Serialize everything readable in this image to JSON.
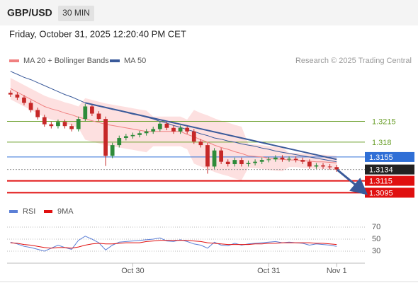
{
  "chart_data": [
    {
      "type": "candlestick",
      "title": "GBP/USD",
      "timeframe": "30 MIN",
      "subtitle": "Friday, October 31, 2025 12:20:40 PM CET",
      "credit": "Research © 2025 Trading Central",
      "categories": [
        null,
        null,
        null,
        null,
        null,
        null,
        null,
        null,
        null,
        null,
        null,
        null,
        null,
        null,
        null,
        null,
        null,
        null,
        "Oct 30",
        null,
        null,
        null,
        null,
        null,
        null,
        null,
        null,
        null,
        null,
        null,
        null,
        null,
        null,
        null,
        null,
        null,
        null,
        null,
        "Oct 31",
        null,
        null,
        null,
        null,
        null,
        null,
        null,
        null,
        null,
        "Nov 1"
      ],
      "open": [
        1.3263,
        1.326,
        1.3255,
        1.3246,
        1.3234,
        1.3222,
        1.321,
        1.3207,
        1.3214,
        1.3207,
        1.3202,
        1.3219,
        1.324,
        1.3228,
        1.3219,
        1.3157,
        1.3175,
        1.3187,
        1.319,
        1.3192,
        1.3195,
        1.3198,
        1.3202,
        1.3211,
        1.3204,
        1.3198,
        1.3204,
        1.3198,
        1.3181,
        1.3175,
        1.3139,
        1.3166,
        1.3147,
        1.3143,
        1.315,
        1.3143,
        1.3145,
        1.3147,
        1.315,
        1.3151,
        1.3154,
        1.3151,
        1.3152,
        1.315,
        1.3147,
        1.3139,
        1.3141,
        1.3139,
        1.3138
      ],
      "high": [
        1.3267,
        1.3264,
        1.3259,
        1.325,
        1.3238,
        1.3226,
        1.3214,
        1.3218,
        1.3218,
        1.3211,
        1.3223,
        1.3244,
        1.3244,
        1.3232,
        1.3223,
        1.3179,
        1.3191,
        1.3194,
        1.3196,
        1.3199,
        1.3202,
        1.3206,
        1.3215,
        1.3215,
        1.3208,
        1.3208,
        1.3208,
        1.3202,
        1.3185,
        1.3179,
        1.317,
        1.317,
        1.3151,
        1.3154,
        1.3154,
        1.3149,
        1.3151,
        1.3154,
        1.3155,
        1.3158,
        1.3158,
        1.3156,
        1.3156,
        1.3154,
        1.3151,
        1.3145,
        1.3145,
        1.3143,
        1.3142
      ],
      "low": [
        1.3256,
        1.3251,
        1.3242,
        1.323,
        1.3218,
        1.3206,
        1.3203,
        1.3203,
        1.3203,
        1.3198,
        1.3198,
        1.3215,
        1.3224,
        1.3215,
        1.314,
        1.3153,
        1.3171,
        1.3183,
        1.3186,
        1.3188,
        1.3191,
        1.3194,
        1.3198,
        1.32,
        1.3194,
        1.3194,
        1.3194,
        1.3177,
        1.3171,
        1.3127,
        1.3135,
        1.3143,
        1.3139,
        1.3139,
        1.3139,
        1.3139,
        1.3141,
        1.3143,
        1.3146,
        1.3147,
        1.3147,
        1.3147,
        1.3146,
        1.3143,
        1.3135,
        1.3135,
        1.3135,
        1.3134,
        1.313
      ],
      "close": [
        1.326,
        1.3255,
        1.3246,
        1.3234,
        1.3222,
        1.321,
        1.3207,
        1.3214,
        1.3207,
        1.3202,
        1.3219,
        1.324,
        1.3228,
        1.3219,
        1.3157,
        1.3175,
        1.3187,
        1.319,
        1.3192,
        1.3195,
        1.3198,
        1.3202,
        1.3211,
        1.3204,
        1.3198,
        1.3204,
        1.3198,
        1.3181,
        1.3175,
        1.3139,
        1.3166,
        1.3147,
        1.3143,
        1.315,
        1.3143,
        1.3145,
        1.3147,
        1.315,
        1.3151,
        1.3154,
        1.3151,
        1.3152,
        1.315,
        1.3147,
        1.3139,
        1.3141,
        1.3139,
        1.3138,
        1.3134
      ],
      "up_color": "#2e8b3a",
      "down_color": "#c62828",
      "ylim": [
        1.308,
        1.33
      ],
      "series": [
        {
          "name": "MA 20 + Bollinger Bands",
          "color": "#f08080",
          "band_color": "#fde0e0",
          "values": [
            1.327,
            1.3264,
            1.3258,
            1.3252,
            1.3246,
            1.324,
            1.3236,
            1.3233,
            1.3229,
            1.3226,
            1.3222,
            1.3219,
            1.3216,
            1.3213,
            1.321,
            1.3208,
            1.3206,
            1.3204,
            1.3202,
            1.32,
            1.3198,
            1.3198,
            1.3198,
            1.3198,
            1.3198,
            1.3198,
            1.3193,
            1.3189,
            1.3184,
            1.318,
            1.3175,
            1.3171,
            1.3168,
            1.3164,
            1.3161,
            1.3157,
            1.3156,
            1.3155,
            1.3153,
            1.3152,
            1.3151,
            1.315,
            1.315,
            1.3149,
            1.3148,
            1.3147,
            1.3147,
            1.3146,
            1.3145
          ],
          "upper": [
            1.3288,
            1.3282,
            1.3276,
            1.327,
            1.3264,
            1.3258,
            1.3254,
            1.3251,
            1.3247,
            1.3244,
            1.324,
            1.3254,
            1.3251,
            1.3248,
            1.3245,
            1.3243,
            1.3241,
            1.3239,
            1.3237,
            1.3235,
            1.3233,
            1.3223,
            1.3223,
            1.3223,
            1.3223,
            1.3223,
            1.3218,
            1.3234,
            1.3229,
            1.3225,
            1.322,
            1.3216,
            1.3213,
            1.3209,
            1.3206,
            1.3177,
            1.3176,
            1.3175,
            1.3173,
            1.3172,
            1.3171,
            1.3162,
            1.3162,
            1.3161,
            1.316,
            1.3159,
            1.3159,
            1.3158,
            1.3157
          ],
          "lower": [
            1.3252,
            1.3246,
            1.324,
            1.3234,
            1.3228,
            1.3222,
            1.3218,
            1.3215,
            1.3211,
            1.3208,
            1.3204,
            1.3184,
            1.3181,
            1.3178,
            1.3175,
            1.3173,
            1.3171,
            1.3169,
            1.3167,
            1.3165,
            1.3163,
            1.3173,
            1.3173,
            1.3173,
            1.3173,
            1.3173,
            1.3168,
            1.3144,
            1.3139,
            1.3135,
            1.313,
            1.3126,
            1.3123,
            1.3119,
            1.3116,
            1.3137,
            1.3136,
            1.3135,
            1.3133,
            1.3132,
            1.3131,
            1.3138,
            1.3138,
            1.3137,
            1.3136,
            1.3135,
            1.3135,
            1.3134,
            1.3133
          ]
        },
        {
          "name": "MA 50",
          "color": "#3a5a9a",
          "values": [
            1.3299,
            1.3294,
            1.3289,
            1.3285,
            1.328,
            1.3275,
            1.327,
            1.3265,
            1.326,
            1.3256,
            1.3251,
            1.3246,
            1.3243,
            1.3241,
            1.3238,
            1.3235,
            1.3233,
            1.323,
            1.3227,
            1.3225,
            1.3222,
            1.3219,
            1.3215,
            1.3212,
            1.3208,
            1.3205,
            1.3201,
            1.3198,
            1.3194,
            1.3191,
            1.3187,
            1.3185,
            1.3182,
            1.318,
            1.3177,
            1.3175,
            1.3173,
            1.317,
            1.3168,
            1.3165,
            1.3163,
            1.3161,
            1.3159,
            1.3157,
            1.3155,
            1.3153,
            1.3151,
            1.3149,
            1.3147
          ]
        }
      ],
      "trendline": {
        "color": "#3a5a9a",
        "start": {
          "index": 11,
          "value": 1.3246
        },
        "end": {
          "index": 48,
          "value": 1.3151
        }
      },
      "levels": [
        {
          "value": 1.3215,
          "color": "#6a9f2a",
          "boxed": false,
          "line": "solid"
        },
        {
          "value": 1.318,
          "color": "#6a9f2a",
          "boxed": false,
          "line": "solid"
        },
        {
          "value": 1.3155,
          "color": "#2f6fd6",
          "boxed": true,
          "line": "solid"
        },
        {
          "value": 1.3134,
          "color": "#222222",
          "boxed": true,
          "line": "dotted"
        },
        {
          "value": 1.3115,
          "color": "#e01010",
          "boxed": true,
          "line": "thick"
        },
        {
          "value": 1.3095,
          "color": "#e01010",
          "boxed": true,
          "line": "thick"
        }
      ]
    },
    {
      "type": "line",
      "ylim": [
        20,
        80
      ],
      "yticks": [
        70,
        50,
        30
      ],
      "grid": true,
      "series": [
        {
          "name": "RSI",
          "color": "#5b7fd6",
          "values": [
            45,
            42,
            38,
            36,
            33,
            30,
            35,
            40,
            36,
            33,
            48,
            55,
            50,
            44,
            32,
            40,
            45,
            46,
            47,
            48,
            49,
            50,
            52,
            47,
            46,
            49,
            46,
            42,
            40,
            35,
            45,
            40,
            39,
            43,
            40,
            42,
            43,
            44,
            45,
            46,
            44,
            45,
            44,
            43,
            40,
            42,
            41,
            40,
            38
          ]
        },
        {
          "name": "9MA",
          "color": "#e01010",
          "values": [
            44,
            43,
            41,
            40,
            38,
            36,
            35,
            36,
            36,
            35,
            37,
            40,
            42,
            43,
            42,
            42,
            43,
            44,
            44,
            44,
            46,
            47,
            48,
            48,
            48,
            48,
            48,
            47,
            46,
            44,
            43,
            42,
            41,
            41,
            41,
            41,
            42,
            42,
            43,
            43,
            44,
            44,
            44,
            44,
            44,
            43,
            43,
            42,
            41
          ]
        }
      ]
    }
  ]
}
